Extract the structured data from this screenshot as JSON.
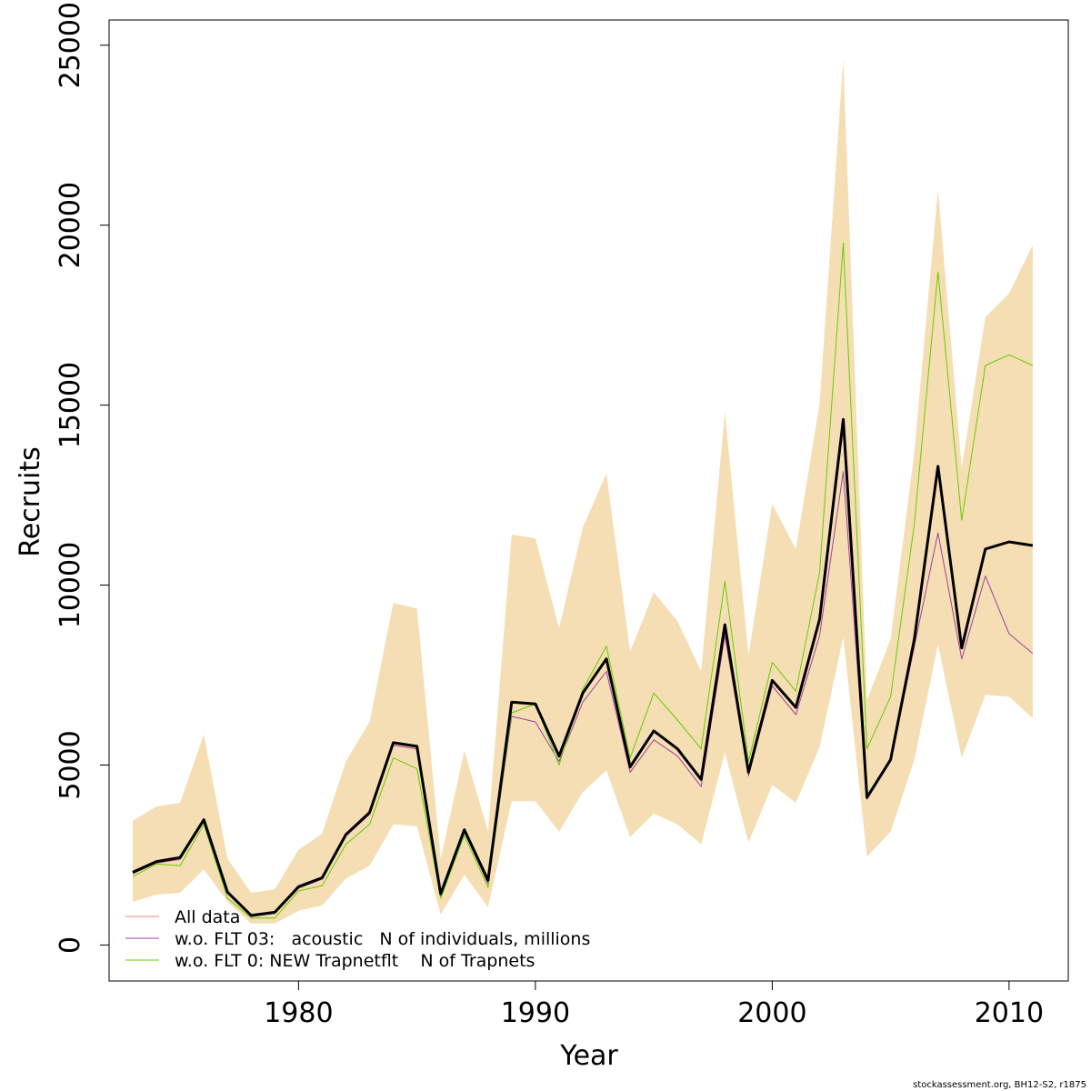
{
  "chart_data": {
    "type": "line",
    "xlabel": "Year",
    "ylabel": "Recruits",
    "xlim": [
      1972,
      2012.5
    ],
    "ylim": [
      -1000,
      25700
    ],
    "x_ticks": [
      1980,
      1990,
      2000,
      2010
    ],
    "y_ticks": [
      0,
      5000,
      10000,
      15000,
      20000,
      25000
    ],
    "grid": false,
    "legend_position": "bottom-left",
    "footer": "stockassessment.org, BH12-S2, r1875",
    "x": [
      1973,
      1974,
      1975,
      1976,
      1977,
      1978,
      1979,
      1980,
      1981,
      1982,
      1983,
      1984,
      1985,
      1986,
      1987,
      1988,
      1989,
      1990,
      1991,
      1992,
      1993,
      1994,
      1995,
      1996,
      1997,
      1998,
      1999,
      2000,
      2001,
      2002,
      2003,
      2004,
      2005,
      2006,
      2007,
      2008,
      2009,
      2010,
      2011
    ],
    "band": {
      "color": "#f5deb3",
      "lower": [
        1200,
        1400,
        1450,
        2100,
        1200,
        600,
        600,
        950,
        1100,
        1850,
        2200,
        3350,
        3300,
        850,
        1950,
        1050,
        4000,
        4000,
        3150,
        4250,
        4850,
        3000,
        3650,
        3350,
        2800,
        5350,
        2850,
        4450,
        3950,
        5500,
        8550,
        2450,
        3150,
        5150,
        8350,
        5200,
        6950,
        6900,
        6300
      ],
      "upper": [
        3450,
        3850,
        3950,
        5850,
        2400,
        1450,
        1550,
        2650,
        3100,
        5100,
        6200,
        9500,
        9350,
        2400,
        5400,
        3150,
        11400,
        11300,
        8800,
        11600,
        13100,
        8150,
        9800,
        9000,
        7600,
        14800,
        8050,
        12250,
        11000,
        15050,
        24600,
        6800,
        8500,
        13700,
        21000,
        13250,
        17450,
        18100,
        19450
      ]
    },
    "series": [
      {
        "name": "All data",
        "color": "#e88080",
        "width": 1,
        "values": [
          2000,
          2300,
          2400,
          3450,
          1450,
          800,
          900,
          1600,
          1850,
          3050,
          3650,
          5600,
          5500,
          1400,
          3200,
          1750,
          6750,
          6700,
          5250,
          7000,
          7900,
          4900,
          5950,
          5450,
          4600,
          8850,
          4750,
          7350,
          6600,
          9050,
          14500,
          4100,
          5150,
          8500,
          13300,
          8250,
          11000,
          11200,
          11100
        ]
      },
      {
        "name": "w.o. FLT 03:   acoustic   N of individuals, millions",
        "color": "#a040a0",
        "width": 1,
        "values": [
          1980,
          2280,
          2380,
          3430,
          1430,
          790,
          880,
          1580,
          1830,
          3030,
          3630,
          5550,
          5450,
          1380,
          3150,
          1700,
          6350,
          6200,
          5100,
          6750,
          7600,
          4800,
          5700,
          5250,
          4400,
          8600,
          4700,
          7200,
          6400,
          8600,
          13150,
          4050,
          5100,
          8300,
          11450,
          7950,
          10250,
          8650,
          8100
        ]
      },
      {
        "name": "w.o. FLT 0: NEW Trapnetflt    N of Trapnets",
        "color": "#66cc00",
        "width": 1,
        "values": [
          1900,
          2250,
          2200,
          3350,
          1300,
          750,
          750,
          1500,
          1650,
          2800,
          3350,
          5200,
          4900,
          1300,
          3050,
          1600,
          6450,
          6700,
          5000,
          7100,
          8300,
          5200,
          7000,
          6250,
          5450,
          10100,
          5100,
          7850,
          7050,
          10350,
          19500,
          5450,
          6900,
          11700,
          18700,
          11800,
          16100,
          16400,
          16100
        ]
      },
      {
        "name": "",
        "color": "#000000",
        "width": 3,
        "values": [
          2020,
          2320,
          2430,
          3480,
          1470,
          820,
          910,
          1620,
          1870,
          3070,
          3680,
          5620,
          5520,
          1420,
          3200,
          1800,
          6750,
          6700,
          5250,
          7000,
          7950,
          4950,
          5950,
          5450,
          4600,
          8900,
          4800,
          7350,
          6600,
          9050,
          14600,
          4100,
          5150,
          8500,
          13300,
          8250,
          11000,
          11200,
          11100
        ]
      }
    ]
  }
}
